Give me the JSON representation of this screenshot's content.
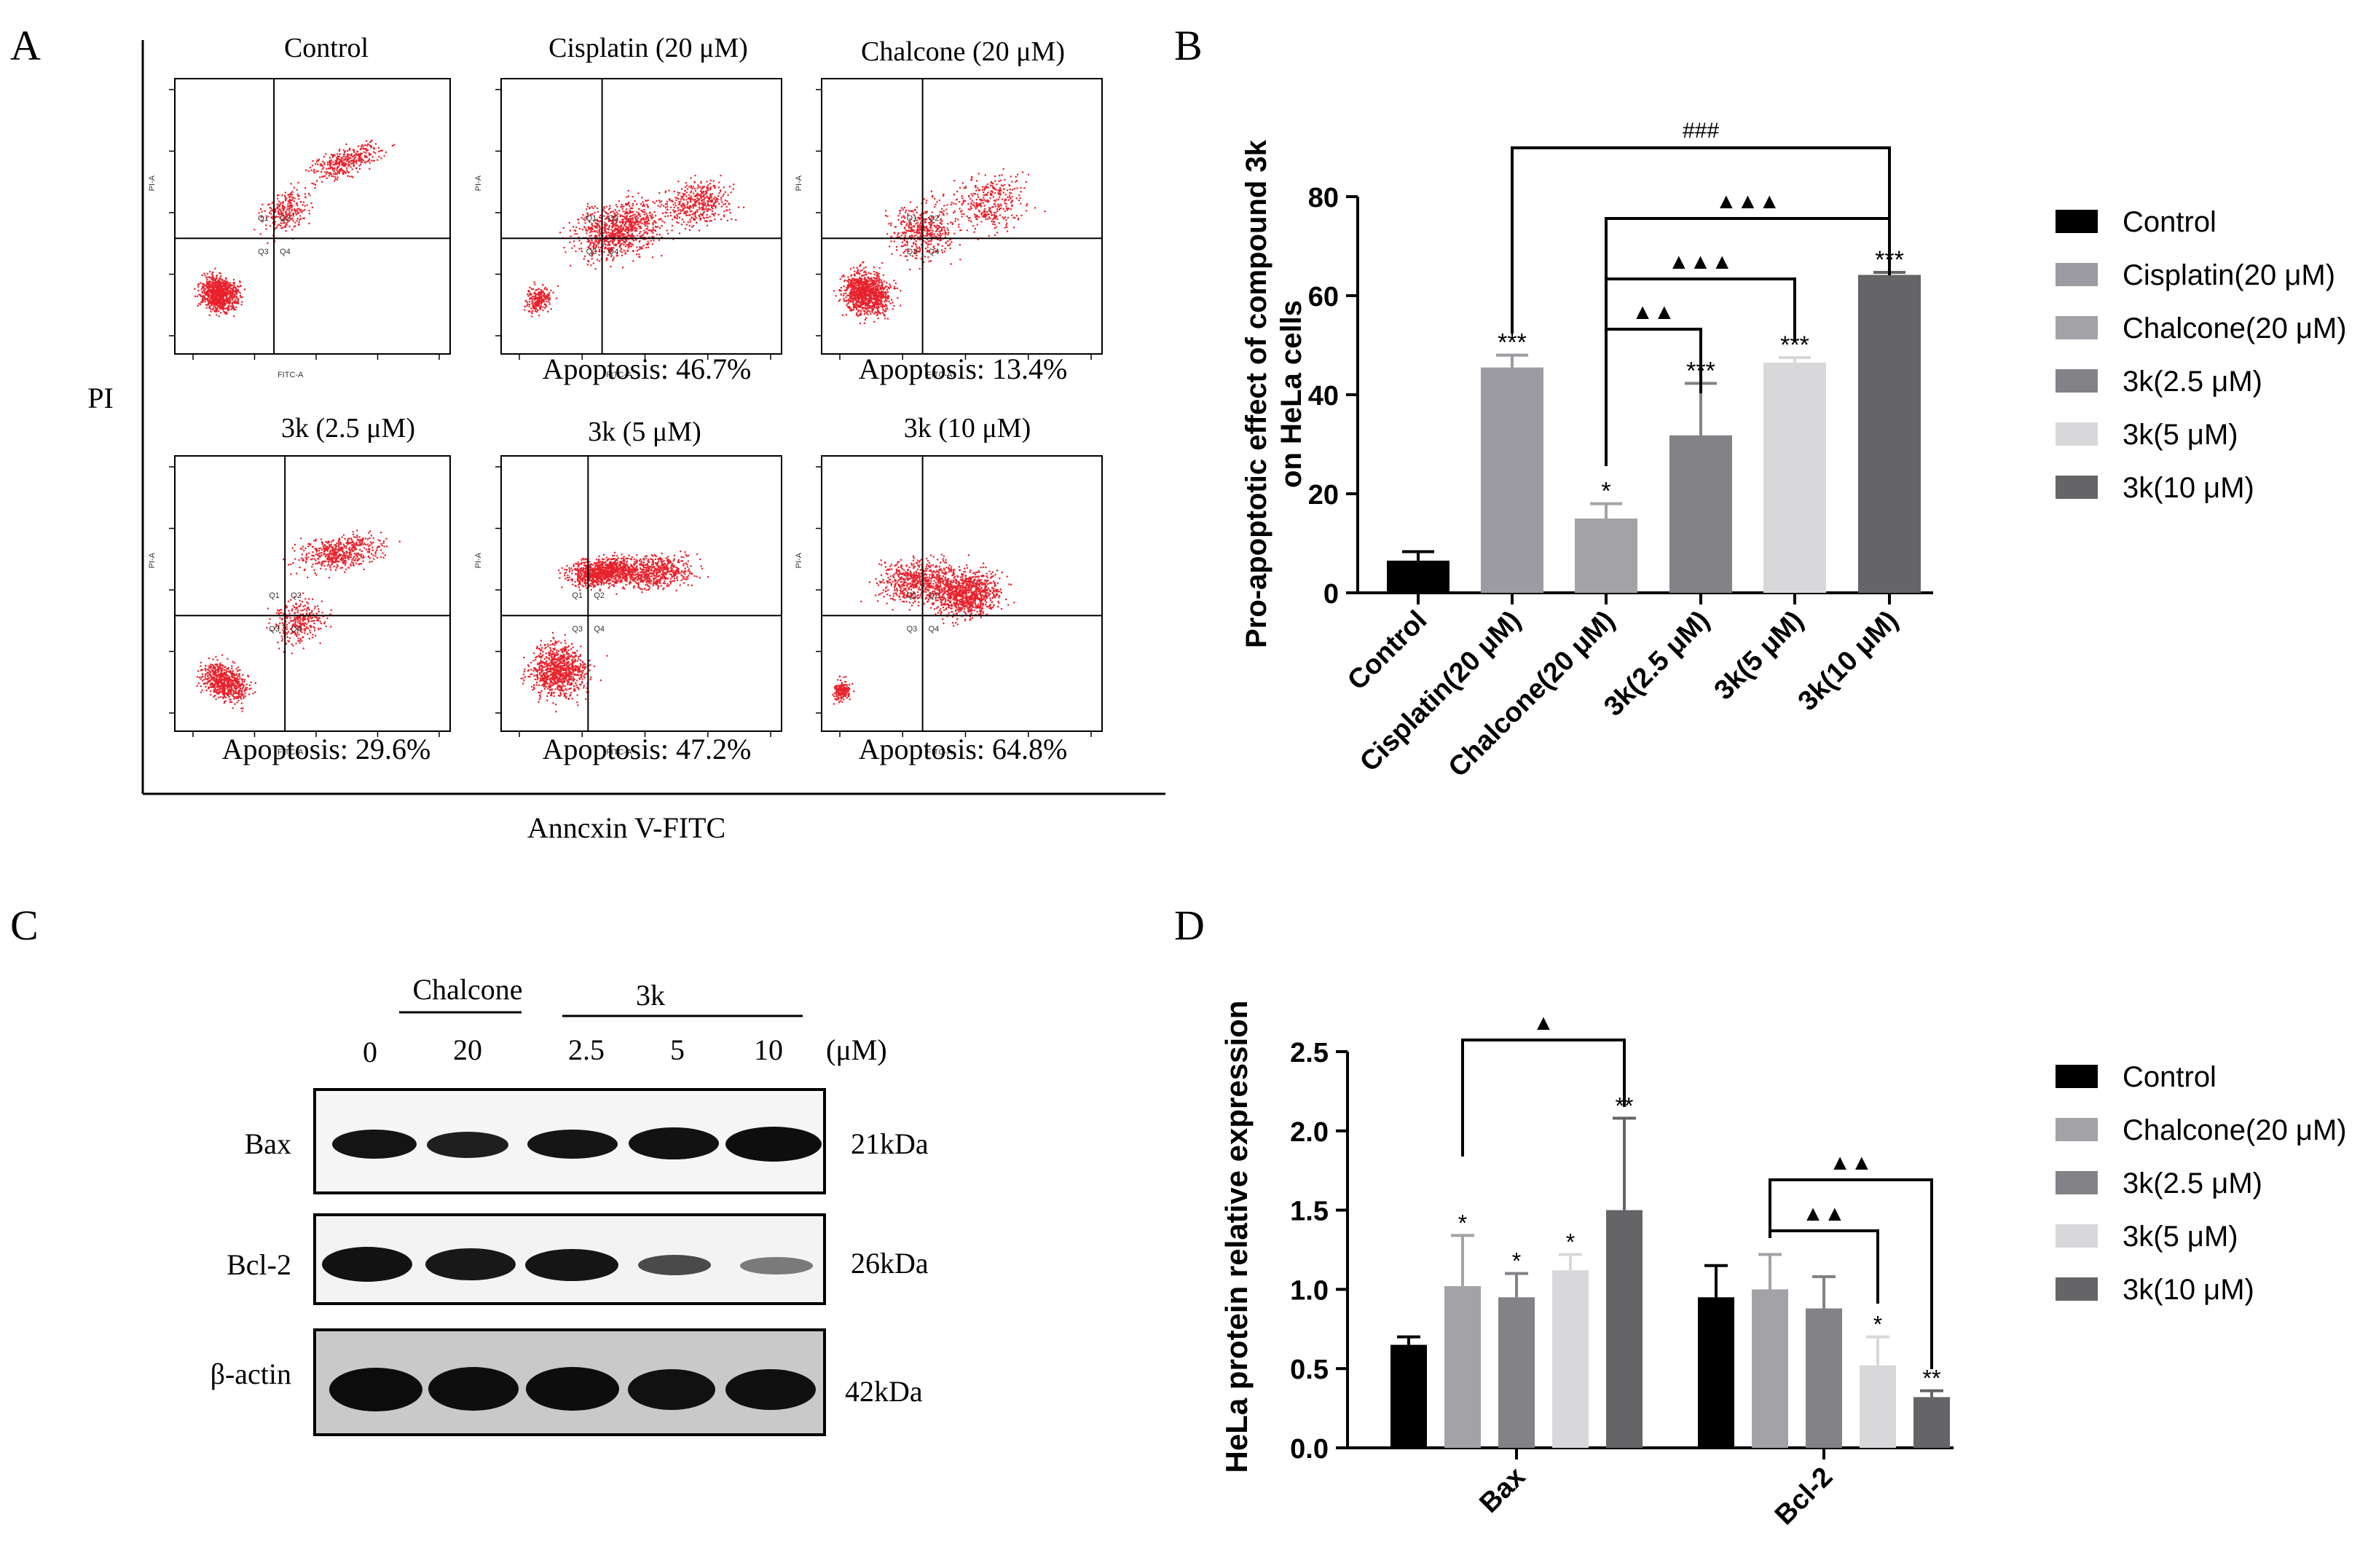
{
  "panel_a": {
    "letter": "A",
    "y_label": "PI",
    "x_label": "Anncxin V-FITC",
    "plot_axis_x": "FITC-A",
    "plot_axis_y": "PI-A",
    "quadrant_labels": [
      "Q1",
      "Q2",
      "Q3",
      "Q4"
    ],
    "plots": [
      {
        "title": "Control",
        "caption": ""
      },
      {
        "title": "Cisplatin (20 μM)",
        "caption": "Apoptosis: 46.7%"
      },
      {
        "title": "Chalcone (20 μM)",
        "caption": "Apoptosis: 13.4%"
      },
      {
        "title": "3k (2.5 μM)",
        "caption": "Apoptosis: 29.6%"
      },
      {
        "title": "3k (5 μM)",
        "caption": "Apoptosis: 47.2%"
      },
      {
        "title": "3k (10 μM)",
        "caption": "Apoptosis: 64.8%"
      }
    ],
    "dot_color": "#e8212b"
  },
  "panel_b": {
    "letter": "B",
    "ylabel_line1": "Pro-apoptotic effect of compound 3k",
    "ylabel_line2": "on HeLa cells",
    "sig_hash": "###",
    "sig_tri3": "▲▲▲",
    "sig_tri2": "▲▲"
  },
  "panel_c": {
    "letter": "C",
    "group1": "Chalcone",
    "group2": "3k",
    "lanes": [
      "0",
      "20",
      "2.5",
      "5",
      "10"
    ],
    "unit": "(μM)",
    "rows": [
      {
        "name": "Bax",
        "kda": "21kDa"
      },
      {
        "name": "Bcl-2",
        "kda": "26kDa"
      },
      {
        "name": "β-actin",
        "kda": "42kDa"
      }
    ]
  },
  "panel_d": {
    "letter": "D",
    "ylabel": "HeLa protein relative expression",
    "sig_tri1": "▲",
    "sig_tri2": "▲▲"
  },
  "chart_data": [
    {
      "type": "bar",
      "title": "",
      "xlabel": "",
      "ylabel": "Pro-apoptotic effect of compound 3k on HeLa cells",
      "ylim": [
        0,
        80
      ],
      "yticks": [
        0,
        20,
        40,
        60,
        80
      ],
      "categories": [
        "Control",
        "Cisplatin(20 μM)",
        "Chalcone(20 μM)",
        "3k(2.5 μM)",
        "3k(5 μM)",
        "3k(10 μM)"
      ],
      "values": [
        6.5,
        45.5,
        15.0,
        31.8,
        46.5,
        64.2
      ],
      "errors": [
        1.8,
        2.5,
        3.0,
        10.5,
        1.0,
        0.5
      ],
      "significance": [
        "",
        "***",
        "*",
        "***",
        "***",
        "***"
      ],
      "colors": [
        "#000000",
        "#9b9ba1",
        "#a2a2a7",
        "#828287",
        "#d8d8db",
        "#656568"
      ],
      "legend": [
        "Control",
        "Cisplatin(20 μM)",
        "Chalcone(20 μM)",
        "3k(2.5 μM)",
        "3k(5 μM)",
        "3k(10 μM)"
      ],
      "legend_position": "right",
      "brackets": [
        {
          "from": 1,
          "to": 5,
          "label": "###"
        },
        {
          "from": 2,
          "to": 5,
          "label": "▲▲▲"
        },
        {
          "from": 2,
          "to": 4,
          "label": "▲▲▲"
        },
        {
          "from": 2,
          "to": 3,
          "label": "▲▲"
        }
      ]
    },
    {
      "type": "bar",
      "title": "",
      "xlabel": "",
      "ylabel": "HeLa protein relative expression",
      "ylim": [
        0,
        2.5
      ],
      "yticks": [
        "0.0",
        "0.5",
        "1.0",
        "1.5",
        "2.0",
        "2.5"
      ],
      "categories": [
        "Bax",
        "Bcl-2"
      ],
      "series": [
        {
          "name": "Control",
          "color": "#000000",
          "values": [
            0.65,
            0.95
          ],
          "errors": [
            0.05,
            0.2
          ],
          "significance": [
            "",
            ""
          ]
        },
        {
          "name": "Chalcone(20 μM)",
          "color": "#a2a2a7",
          "values": [
            1.02,
            1.0
          ],
          "errors": [
            0.32,
            0.22
          ],
          "significance": [
            "*",
            ""
          ]
        },
        {
          "name": "3k(2.5 μM)",
          "color": "#828287",
          "values": [
            0.95,
            0.88
          ],
          "errors": [
            0.15,
            0.2
          ],
          "significance": [
            "*",
            ""
          ]
        },
        {
          "name": "3k(5 μM)",
          "color": "#d8d8db",
          "values": [
            1.12,
            0.52
          ],
          "errors": [
            0.1,
            0.18
          ],
          "significance": [
            "*",
            "*"
          ]
        },
        {
          "name": "3k(10 μM)",
          "color": "#656568",
          "values": [
            1.5,
            0.32
          ],
          "errors": [
            0.58,
            0.04
          ],
          "significance": [
            "**",
            "**"
          ]
        }
      ],
      "legend_position": "right",
      "brackets": [
        {
          "group": 0,
          "from": 1,
          "to": 4,
          "label": "▲"
        },
        {
          "group": 1,
          "from": 1,
          "to": 4,
          "label": "▲▲"
        },
        {
          "group": 1,
          "from": 1,
          "to": 3,
          "label": "▲▲"
        }
      ]
    }
  ]
}
